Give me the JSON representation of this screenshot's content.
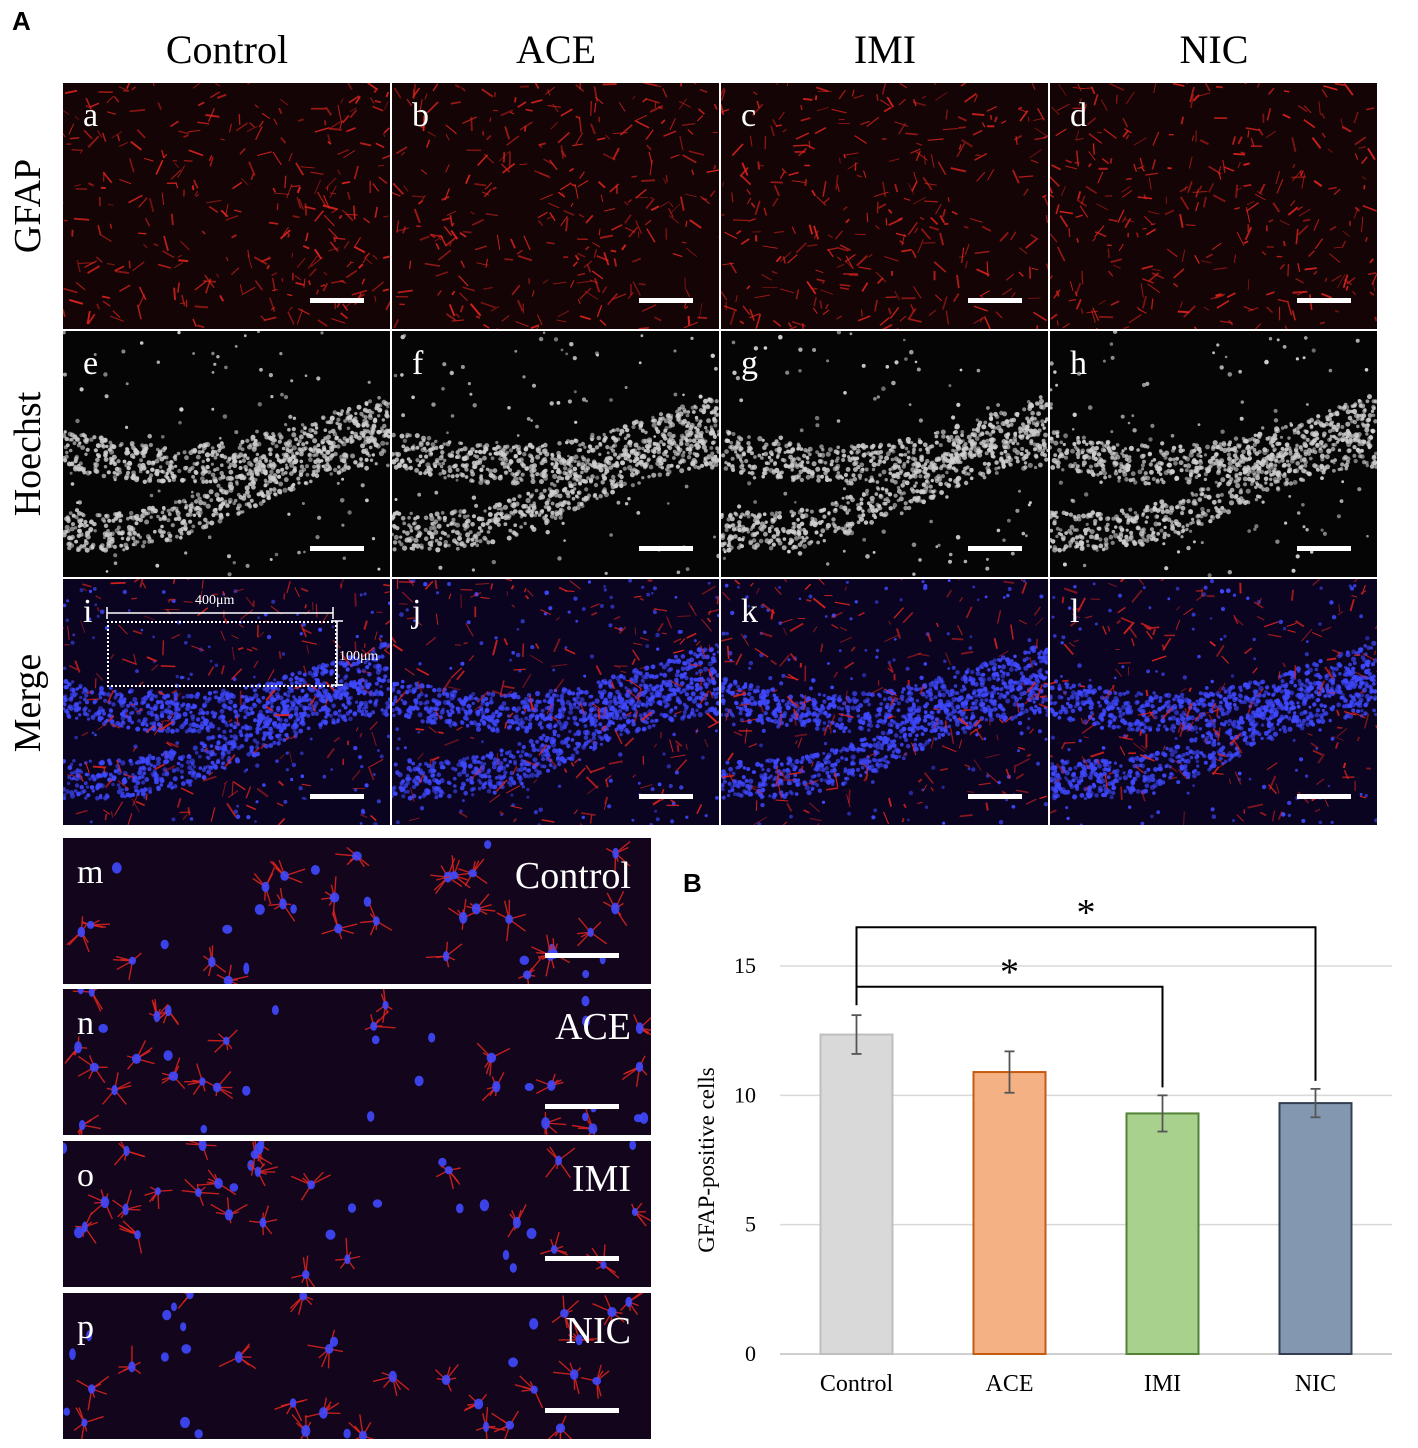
{
  "figure": {
    "panel_a_letter": "A",
    "panel_b_letter": "B",
    "columns": [
      "Control",
      "ACE",
      "IMI",
      "NIC"
    ],
    "rows": [
      "GFAP",
      "Hoechst",
      "Merge"
    ],
    "sublabels": [
      [
        "a",
        "b",
        "c",
        "d"
      ],
      [
        "e",
        "f",
        "g",
        "h"
      ],
      [
        "i",
        "j",
        "k",
        "l"
      ]
    ],
    "roi": {
      "width_label": "400μm",
      "height_label": "100μm"
    },
    "zoom_panels": [
      {
        "sub": "m",
        "label": "Control"
      },
      {
        "sub": "n",
        "label": "ACE"
      },
      {
        "sub": "o",
        "label": "IMI"
      },
      {
        "sub": "p",
        "label": "NIC"
      }
    ],
    "colors": {
      "gfap": "#e0241e",
      "hoechst": "#cfcfcf",
      "nuclei_blue": "#3f49ff"
    }
  },
  "chart_data": {
    "type": "bar",
    "categories": [
      "Control",
      "ACE",
      "IMI",
      "NIC"
    ],
    "values": [
      12.35,
      10.9,
      9.3,
      9.7
    ],
    "errors": [
      0.75,
      0.8,
      0.7,
      0.55
    ],
    "ylabel": "GFAP-positive  cells",
    "xlabel": "",
    "ylim": [
      0,
      15
    ],
    "yticks": [
      0,
      5,
      10,
      15
    ],
    "grid": true,
    "bar_fill": [
      "#d9d9d9",
      "#f4b183",
      "#a9d18e",
      "#8497b0"
    ],
    "bar_stroke": [
      "#bfbfbf",
      "#c55a11",
      "#538135",
      "#333f50"
    ],
    "significance": [
      {
        "from": "Control",
        "to": "IMI",
        "label": "*"
      },
      {
        "from": "Control",
        "to": "NIC",
        "label": "*"
      }
    ]
  }
}
